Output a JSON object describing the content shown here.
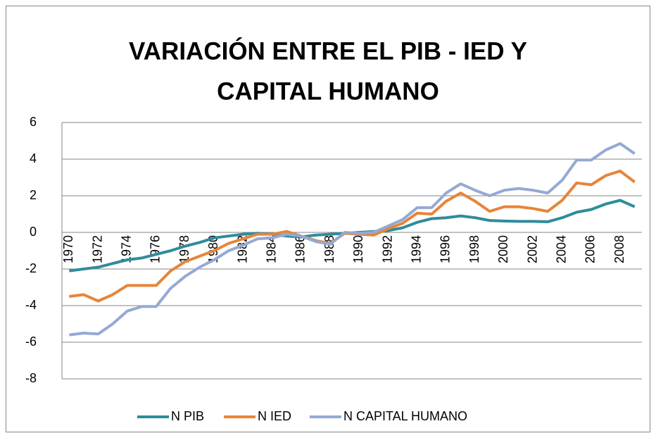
{
  "chart_data": {
    "type": "line",
    "title": [
      "VARIACIÓN ENTRE EL PIB - IED Y",
      "CAPITAL HUMANO"
    ],
    "categories": [
      "1970",
      null,
      "1972",
      null,
      "1974",
      null,
      "1976",
      null,
      "1978",
      null,
      "1980",
      null,
      "1982",
      null,
      "1984",
      null,
      "1986",
      null,
      "1988",
      null,
      "1990",
      null,
      "1992",
      null,
      "1994",
      null,
      "1996",
      null,
      "1998",
      null,
      "2000",
      null,
      "2002",
      null,
      "2004",
      null,
      "2006",
      null,
      "2008",
      null
    ],
    "series": [
      {
        "name": "N PIB",
        "color": "#2f8c9c",
        "values": [
          -2.1,
          -2.0,
          -1.9,
          -1.7,
          -1.5,
          -1.4,
          -1.2,
          -1.0,
          -0.75,
          -0.55,
          -0.3,
          -0.2,
          -0.1,
          -0.05,
          -0.1,
          -0.2,
          -0.25,
          -0.15,
          -0.1,
          -0.05,
          0,
          0.05,
          0.1,
          0.25,
          0.55,
          0.75,
          0.8,
          0.9,
          0.8,
          0.65,
          0.62,
          0.6,
          0.6,
          0.58,
          0.8,
          1.1,
          1.25,
          1.55,
          1.75,
          1.4
        ]
      },
      {
        "name": "N IED",
        "color": "#e6853a",
        "values": [
          -3.5,
          -3.4,
          -3.75,
          -3.4,
          -2.9,
          -2.9,
          -2.9,
          -2.1,
          -1.6,
          -1.3,
          -1.0,
          -0.6,
          -0.35,
          -0.1,
          -0.1,
          0.05,
          -0.2,
          -0.45,
          -0.6,
          -0.05,
          -0.1,
          -0.15,
          0.2,
          0.5,
          1.05,
          1.0,
          1.7,
          2.15,
          1.7,
          1.15,
          1.4,
          1.4,
          1.3,
          1.15,
          1.75,
          2.7,
          2.6,
          3.1,
          3.35,
          2.75
        ]
      },
      {
        "name": "N CAPITAL HUMANO",
        "color": "#95a9d4",
        "values": [
          -5.6,
          -5.5,
          -5.55,
          -5.0,
          -4.3,
          -4.05,
          -4.05,
          -3.05,
          -2.4,
          -1.9,
          -1.5,
          -1.0,
          -0.7,
          -0.35,
          -0.3,
          -0.1,
          -0.2,
          -0.5,
          -0.65,
          0,
          -0.05,
          0,
          0.35,
          0.7,
          1.35,
          1.35,
          2.15,
          2.65,
          2.3,
          2.0,
          2.3,
          2.4,
          2.3,
          2.15,
          2.85,
          3.95,
          3.95,
          4.5,
          4.85,
          4.3
        ]
      }
    ],
    "ylim": [
      -8,
      6
    ],
    "yticks": [
      -8,
      -6,
      -4,
      -2,
      0,
      2,
      4,
      6
    ],
    "grid": true,
    "legend": "bottom"
  }
}
